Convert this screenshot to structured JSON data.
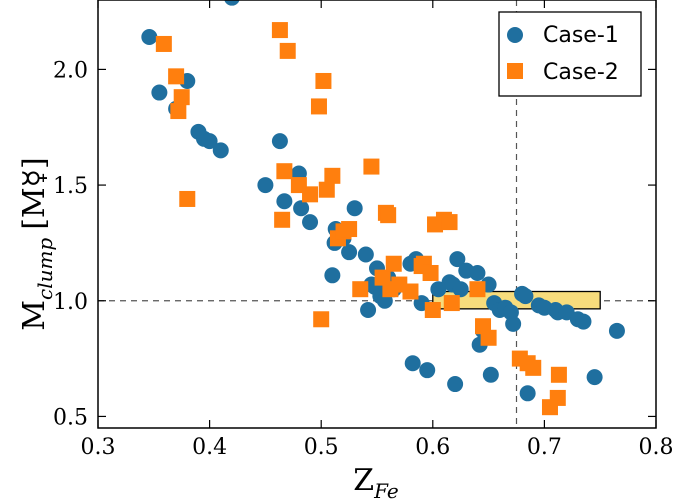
{
  "chart_data": {
    "type": "scatter",
    "xlabel_main": "Z",
    "xlabel_sub": "Fe",
    "ylabel_main": "M",
    "ylabel_sub": "clump",
    "ylabel_unit": "[M☿]",
    "xlim": [
      0.3,
      0.8
    ],
    "ylim": [
      0.45,
      2.3
    ],
    "xticks": [
      "0.3",
      "0.4",
      "0.5",
      "0.6",
      "0.7",
      "0.8"
    ],
    "yticks": [
      "0.5",
      "1.0",
      "1.5",
      "2.0"
    ],
    "reference_lines": {
      "x": 0.675,
      "y": 1.0
    },
    "highlight_box": {
      "x": [
        0.6,
        0.75
      ],
      "y": [
        0.965,
        1.04
      ],
      "color": "#f7dc7c"
    },
    "legend": {
      "position": "top-right"
    },
    "series": [
      {
        "name": "Case-1",
        "marker": "circle",
        "color": "#1f6f9f",
        "points": [
          [
            0.346,
            2.14
          ],
          [
            0.355,
            1.9
          ],
          [
            0.37,
            1.83
          ],
          [
            0.38,
            1.95
          ],
          [
            0.39,
            1.73
          ],
          [
            0.395,
            1.7
          ],
          [
            0.4,
            1.69
          ],
          [
            0.41,
            1.65
          ],
          [
            0.42,
            2.31
          ],
          [
            0.45,
            1.5
          ],
          [
            0.463,
            1.69
          ],
          [
            0.467,
            1.43
          ],
          [
            0.48,
            1.55
          ],
          [
            0.482,
            1.4
          ],
          [
            0.49,
            1.34
          ],
          [
            0.51,
            1.11
          ],
          [
            0.512,
            1.25
          ],
          [
            0.513,
            1.31
          ],
          [
            0.52,
            1.27
          ],
          [
            0.525,
            1.21
          ],
          [
            0.53,
            1.4
          ],
          [
            0.54,
            1.2
          ],
          [
            0.542,
            0.96
          ],
          [
            0.545,
            1.07
          ],
          [
            0.548,
            1.06
          ],
          [
            0.55,
            1.14
          ],
          [
            0.553,
            1.02
          ],
          [
            0.557,
            1.0
          ],
          [
            0.56,
            1.1
          ],
          [
            0.565,
            1.05
          ],
          [
            0.58,
            1.16
          ],
          [
            0.582,
            0.73
          ],
          [
            0.585,
            1.18
          ],
          [
            0.59,
            0.99
          ],
          [
            0.595,
            0.7
          ],
          [
            0.605,
            1.05
          ],
          [
            0.615,
            1.08
          ],
          [
            0.618,
            1.07
          ],
          [
            0.62,
            0.64
          ],
          [
            0.622,
            1.18
          ],
          [
            0.625,
            1.05
          ],
          [
            0.63,
            1.13
          ],
          [
            0.64,
            1.12
          ],
          [
            0.642,
            0.81
          ],
          [
            0.645,
            0.87
          ],
          [
            0.65,
            1.07
          ],
          [
            0.652,
            0.68
          ],
          [
            0.655,
            0.99
          ],
          [
            0.66,
            0.96
          ],
          [
            0.665,
            0.97
          ],
          [
            0.67,
            0.95
          ],
          [
            0.672,
            0.9
          ],
          [
            0.68,
            1.03
          ],
          [
            0.683,
            1.02
          ],
          [
            0.685,
            0.6
          ],
          [
            0.695,
            0.98
          ],
          [
            0.7,
            0.97
          ],
          [
            0.71,
            0.96
          ],
          [
            0.712,
            0.95
          ],
          [
            0.72,
            0.95
          ],
          [
            0.73,
            0.92
          ],
          [
            0.735,
            0.91
          ],
          [
            0.745,
            0.67
          ],
          [
            0.765,
            0.87
          ]
        ]
      },
      {
        "name": "Case-2",
        "marker": "square",
        "color": "#ff7f0e",
        "points": [
          [
            0.359,
            2.11
          ],
          [
            0.37,
            1.97
          ],
          [
            0.372,
            1.82
          ],
          [
            0.375,
            1.88
          ],
          [
            0.38,
            1.44
          ],
          [
            0.463,
            2.17
          ],
          [
            0.465,
            1.35
          ],
          [
            0.467,
            1.56
          ],
          [
            0.47,
            2.08
          ],
          [
            0.48,
            1.5
          ],
          [
            0.49,
            1.46
          ],
          [
            0.498,
            1.84
          ],
          [
            0.5,
            0.92
          ],
          [
            0.502,
            1.95
          ],
          [
            0.505,
            1.48
          ],
          [
            0.51,
            1.54
          ],
          [
            0.515,
            1.27
          ],
          [
            0.52,
            1.3
          ],
          [
            0.525,
            1.31
          ],
          [
            0.535,
            1.05
          ],
          [
            0.545,
            1.58
          ],
          [
            0.555,
            1.1
          ],
          [
            0.558,
            1.38
          ],
          [
            0.56,
            1.37
          ],
          [
            0.562,
            1.05
          ],
          [
            0.565,
            1.16
          ],
          [
            0.57,
            1.07
          ],
          [
            0.58,
            1.04
          ],
          [
            0.59,
            1.15
          ],
          [
            0.592,
            1.16
          ],
          [
            0.598,
            1.12
          ],
          [
            0.6,
            0.96
          ],
          [
            0.602,
            1.33
          ],
          [
            0.61,
            1.35
          ],
          [
            0.615,
            1.34
          ],
          [
            0.617,
            0.99
          ],
          [
            0.64,
            1.05
          ],
          [
            0.645,
            0.89
          ],
          [
            0.65,
            0.84
          ],
          [
            0.678,
            0.75
          ],
          [
            0.685,
            0.73
          ],
          [
            0.69,
            0.71
          ],
          [
            0.705,
            0.54
          ],
          [
            0.712,
            0.58
          ],
          [
            0.713,
            0.68
          ]
        ]
      }
    ]
  }
}
